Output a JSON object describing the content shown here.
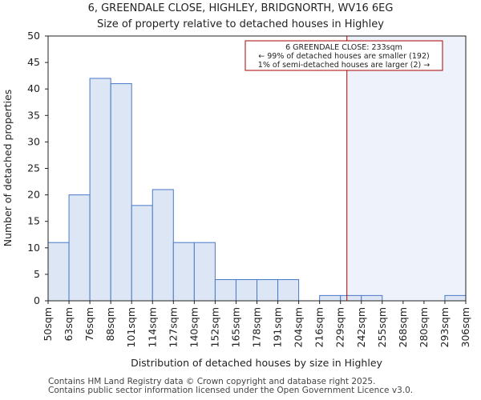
{
  "chart_data": {
    "type": "bar",
    "title": "6, GREENDALE CLOSE, HIGHLEY, BRIDGNORTH, WV16 6EG",
    "subtitle": "Size of property relative to detached houses in Highley",
    "xlabel": "Distribution of detached houses by size in Highley",
    "ylabel": "Number of detached properties",
    "ylim": [
      0,
      50
    ],
    "yticks": [
      0,
      5,
      10,
      15,
      20,
      25,
      30,
      35,
      40,
      45,
      50
    ],
    "bin_edges": [
      "50sqm",
      "63sqm",
      "76sqm",
      "88sqm",
      "101sqm",
      "114sqm",
      "127sqm",
      "140sqm",
      "152sqm",
      "165sqm",
      "178sqm",
      "191sqm",
      "204sqm",
      "216sqm",
      "229sqm",
      "242sqm",
      "255sqm",
      "268sqm",
      "280sqm",
      "293sqm",
      "306sqm"
    ],
    "values": [
      11,
      20,
      42,
      41,
      18,
      21,
      11,
      11,
      4,
      4,
      4,
      4,
      0,
      1,
      1,
      1,
      0,
      0,
      0,
      1
    ],
    "bar_color": "#dce6f4",
    "bar_edge_color": "#4a78c8",
    "highlight_color": "#eef3fb",
    "marker": {
      "value_sqm": 233,
      "color": "#aa0000"
    },
    "annotation": {
      "lines": [
        "6 GREENDALE CLOSE: 233sqm",
        "← 99% of detached houses are smaller (192)",
        "1% of semi-detached houses are larger (2) →"
      ]
    },
    "grid": false
  },
  "footer": {
    "line1": "Contains HM Land Registry data © Crown copyright and database right 2025.",
    "line2": "Contains public sector information licensed under the Open Government Licence v3.0."
  }
}
